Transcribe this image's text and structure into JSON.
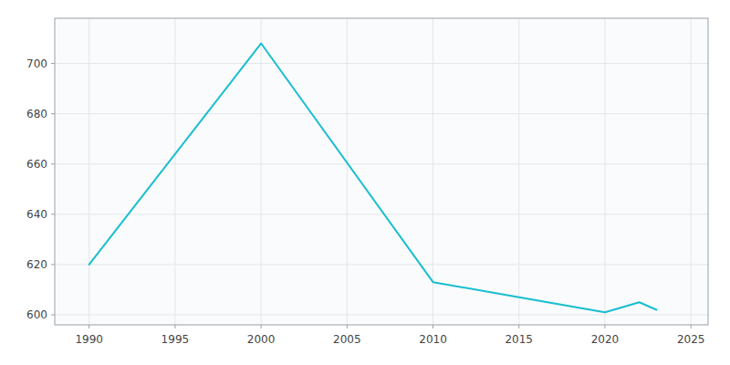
{
  "chart_data": {
    "type": "line",
    "x": [
      1990,
      2000,
      2010,
      2015,
      2020,
      2022,
      2023
    ],
    "values": [
      620,
      708,
      613,
      607,
      601,
      605,
      602
    ],
    "color": "#17becf",
    "xlim": [
      1988,
      2026
    ],
    "ylim": [
      596,
      718
    ],
    "xticks": [
      1990,
      1995,
      2000,
      2005,
      2010,
      2015,
      2020,
      2025
    ],
    "yticks": [
      600,
      620,
      640,
      660,
      680,
      700
    ],
    "grid": true
  }
}
